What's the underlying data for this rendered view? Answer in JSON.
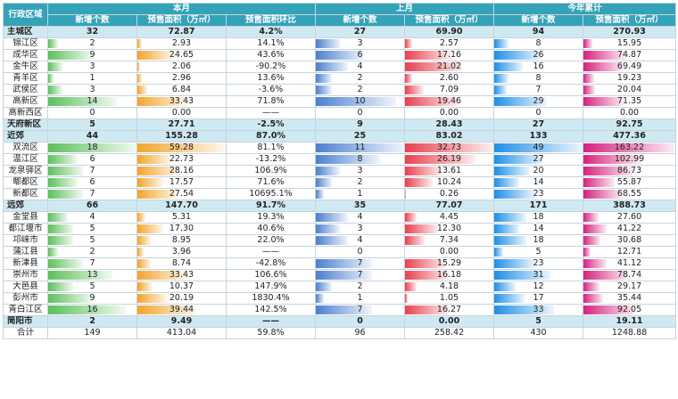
{
  "header": {
    "region": "行政区域",
    "groups": [
      "本月",
      "上月",
      "今年累计"
    ],
    "cols": [
      "新增个数",
      "预售面积（万㎡）",
      "预售面积环比",
      "新增个数",
      "预售面积（万㎡）",
      "新增个数",
      "预售面积（万㎡）"
    ]
  },
  "colors": {
    "header_bg": "#34a3b8",
    "summary_bg": "#cfe9f2",
    "cur_count": "#5cbf5c",
    "cur_area": "#f2a52a",
    "prev_count": "#4b7fcf",
    "prev_area": "#e8404f",
    "ytd_count": "#1e8fe6",
    "ytd_area": "#d6217e"
  },
  "rows": [
    {
      "type": "summary",
      "region": "主城区",
      "c1": "32",
      "a1": "72.87",
      "r1": "4.2%",
      "c2": "27",
      "a2": "69.90",
      "c3": "94",
      "a3": "270.93"
    },
    {
      "type": "detail",
      "region": "锦江区",
      "c1": "2",
      "a1": "2.93",
      "r1": "14.1%",
      "c2": "3",
      "a2": "2.57",
      "c3": "8",
      "a3": "15.95"
    },
    {
      "type": "detail",
      "region": "成华区",
      "c1": "9",
      "a1": "24.65",
      "r1": "43.6%",
      "c2": "6",
      "a2": "17.16",
      "c3": "26",
      "a3": "74.87"
    },
    {
      "type": "detail",
      "region": "金牛区",
      "c1": "3",
      "a1": "2.06",
      "r1": "-90.2%",
      "c2": "4",
      "a2": "21.02",
      "c3": "16",
      "a3": "69.49"
    },
    {
      "type": "detail",
      "region": "青羊区",
      "c1": "1",
      "a1": "2.96",
      "r1": "13.6%",
      "c2": "2",
      "a2": "2.60",
      "c3": "8",
      "a3": "19.23"
    },
    {
      "type": "detail",
      "region": "武侯区",
      "c1": "3",
      "a1": "6.84",
      "r1": "-3.6%",
      "c2": "2",
      "a2": "7.09",
      "c3": "7",
      "a3": "20.04"
    },
    {
      "type": "detail",
      "region": "高新区",
      "c1": "14",
      "a1": "33.43",
      "r1": "71.8%",
      "c2": "10",
      "a2": "19.46",
      "c3": "29",
      "a3": "71.35"
    },
    {
      "type": "detail",
      "region": "高新西区",
      "c1": "0",
      "a1": "0.00",
      "r1": "——",
      "c2": "0",
      "a2": "0.00",
      "c3": "0",
      "a3": "0.00"
    },
    {
      "type": "summary",
      "region": "天府新区",
      "c1": "5",
      "a1": "27.71",
      "r1": "-2.5%",
      "c2": "9",
      "a2": "28.43",
      "c3": "27",
      "a3": "92.75"
    },
    {
      "type": "summary",
      "region": "近郊",
      "c1": "44",
      "a1": "155.28",
      "r1": "87.0%",
      "c2": "25",
      "a2": "83.02",
      "c3": "133",
      "a3": "477.36"
    },
    {
      "type": "detail",
      "region": "双流区",
      "c1": "18",
      "a1": "59.28",
      "r1": "81.1%",
      "c2": "11",
      "a2": "32.73",
      "c3": "49",
      "a3": "163.22"
    },
    {
      "type": "detail",
      "region": "温江区",
      "c1": "6",
      "a1": "22.73",
      "r1": "-13.2%",
      "c2": "8",
      "a2": "26.19",
      "c3": "27",
      "a3": "102.99"
    },
    {
      "type": "detail",
      "region": "龙泉驿区",
      "c1": "7",
      "a1": "28.16",
      "r1": "106.9%",
      "c2": "3",
      "a2": "13.61",
      "c3": "20",
      "a3": "86.73"
    },
    {
      "type": "detail",
      "region": "郫都区",
      "c1": "6",
      "a1": "17.57",
      "r1": "71.6%",
      "c2": "2",
      "a2": "10.24",
      "c3": "14",
      "a3": "55.87"
    },
    {
      "type": "detail",
      "region": "新都区",
      "c1": "7",
      "a1": "27.54",
      "r1": "10695.1%",
      "c2": "1",
      "a2": "0.26",
      "c3": "23",
      "a3": "68.55"
    },
    {
      "type": "summary",
      "region": "远郊",
      "c1": "66",
      "a1": "147.70",
      "r1": "91.7%",
      "c2": "35",
      "a2": "77.07",
      "c3": "171",
      "a3": "388.73"
    },
    {
      "type": "detail",
      "region": "金堂县",
      "c1": "4",
      "a1": "5.31",
      "r1": "19.3%",
      "c2": "4",
      "a2": "4.45",
      "c3": "18",
      "a3": "27.60"
    },
    {
      "type": "detail",
      "region": "都江堰市",
      "c1": "5",
      "a1": "17.30",
      "r1": "40.6%",
      "c2": "3",
      "a2": "12.30",
      "c3": "14",
      "a3": "41.22"
    },
    {
      "type": "detail",
      "region": "邛崃市",
      "c1": "5",
      "a1": "8.95",
      "r1": "22.0%",
      "c2": "4",
      "a2": "7.34",
      "c3": "18",
      "a3": "30.68"
    },
    {
      "type": "detail",
      "region": "蒲江县",
      "c1": "2",
      "a1": "3.96",
      "r1": "——",
      "c2": "0",
      "a2": "0.00",
      "c3": "5",
      "a3": "12.71"
    },
    {
      "type": "detail",
      "region": "新津县",
      "c1": "7",
      "a1": "8.74",
      "r1": "-42.8%",
      "c2": "7",
      "a2": "15.29",
      "c3": "23",
      "a3": "41.12"
    },
    {
      "type": "detail",
      "region": "崇州市",
      "c1": "13",
      "a1": "33.43",
      "r1": "106.6%",
      "c2": "7",
      "a2": "16.18",
      "c3": "31",
      "a3": "78.74"
    },
    {
      "type": "detail",
      "region": "大邑县",
      "c1": "5",
      "a1": "10.37",
      "r1": "147.9%",
      "c2": "2",
      "a2": "4.18",
      "c3": "12",
      "a3": "29.17"
    },
    {
      "type": "detail",
      "region": "彭州市",
      "c1": "9",
      "a1": "20.19",
      "r1": "1830.4%",
      "c2": "1",
      "a2": "1.05",
      "c3": "17",
      "a3": "35.44"
    },
    {
      "type": "detail",
      "region": "青白江区",
      "c1": "16",
      "a1": "39.44",
      "r1": "142.5%",
      "c2": "7",
      "a2": "16.27",
      "c3": "33",
      "a3": "92.05"
    },
    {
      "type": "summary",
      "region": "简阳市",
      "c1": "2",
      "a1": "9.49",
      "r1": "——",
      "c2": "0",
      "a2": "0.00",
      "c3": "5",
      "a3": "19.11"
    },
    {
      "type": "total",
      "region": "合计",
      "c1": "149",
      "a1": "413.04",
      "r1": "59.8%",
      "c2": "96",
      "a2": "258.42",
      "c3": "430",
      "a3": "1248.88"
    }
  ]
}
